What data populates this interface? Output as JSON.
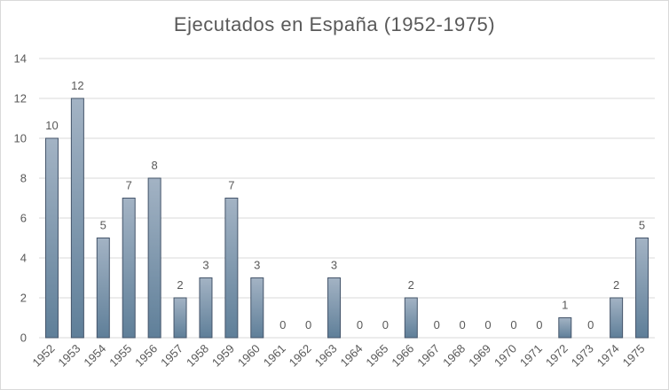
{
  "chart_data": {
    "type": "bar",
    "title": "Ejecutados en España (1952-1975)",
    "xlabel": "",
    "ylabel": "",
    "ylim": [
      0,
      14
    ],
    "yticks": [
      0,
      2,
      4,
      6,
      8,
      10,
      12,
      14
    ],
    "grid": true,
    "legend": "none",
    "categories": [
      "1952",
      "1953",
      "1954",
      "1955",
      "1956",
      "1957",
      "1958",
      "1959",
      "1960",
      "1961",
      "1962",
      "1963",
      "1964",
      "1965",
      "1966",
      "1967",
      "1968",
      "1969",
      "1970",
      "1971",
      "1972",
      "1973",
      "1974",
      "1975"
    ],
    "values": [
      10,
      12,
      5,
      7,
      8,
      2,
      3,
      7,
      3,
      0,
      0,
      3,
      0,
      0,
      2,
      0,
      0,
      0,
      0,
      0,
      1,
      0,
      2,
      5
    ],
    "colors": {
      "bar_top": "#a3b3c4",
      "bar_bottom": "#5f7f99",
      "bar_stroke": "#44546a",
      "grid": "#d9d9d9",
      "text": "#595959"
    }
  }
}
